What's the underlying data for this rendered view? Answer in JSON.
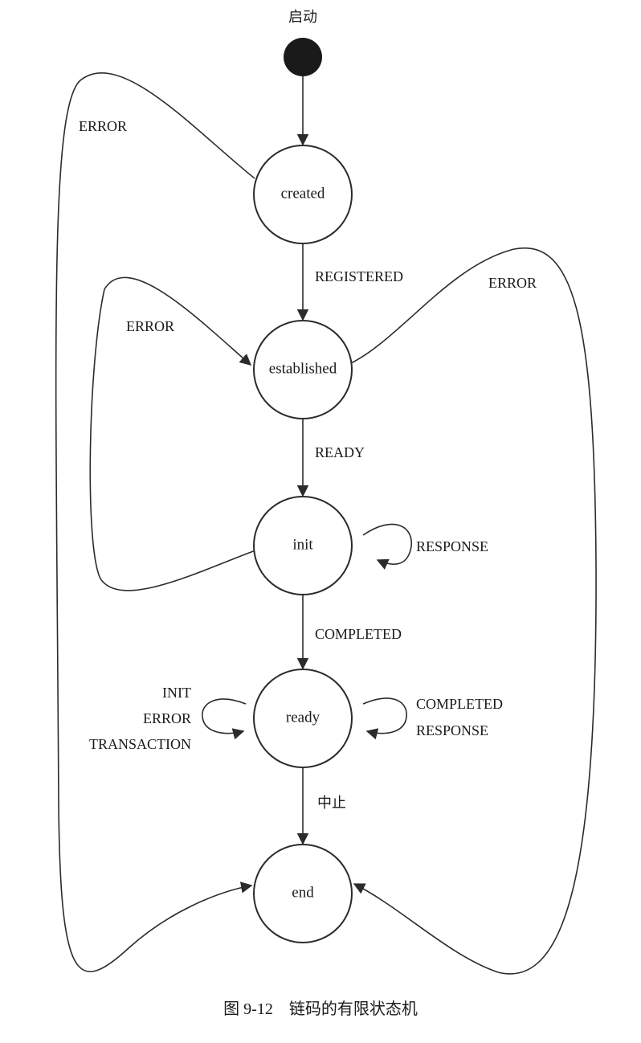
{
  "start": {
    "label": "启动"
  },
  "states": {
    "created": "created",
    "established": "established",
    "init": "init",
    "ready": "ready",
    "end": "end"
  },
  "transitions": {
    "registered": "REGISTERED",
    "ready": "READY",
    "completed": "COMPLETED",
    "abort": "中止",
    "error_created": "ERROR",
    "error_init": "ERROR",
    "error_established": "ERROR",
    "init_self": "RESPONSE",
    "ready_self_left": [
      "INIT",
      "ERROR",
      "TRANSACTION"
    ],
    "ready_self_right": [
      "COMPLETED",
      "RESPONSE"
    ]
  },
  "caption": "图 9-12　链码的有限状态机"
}
